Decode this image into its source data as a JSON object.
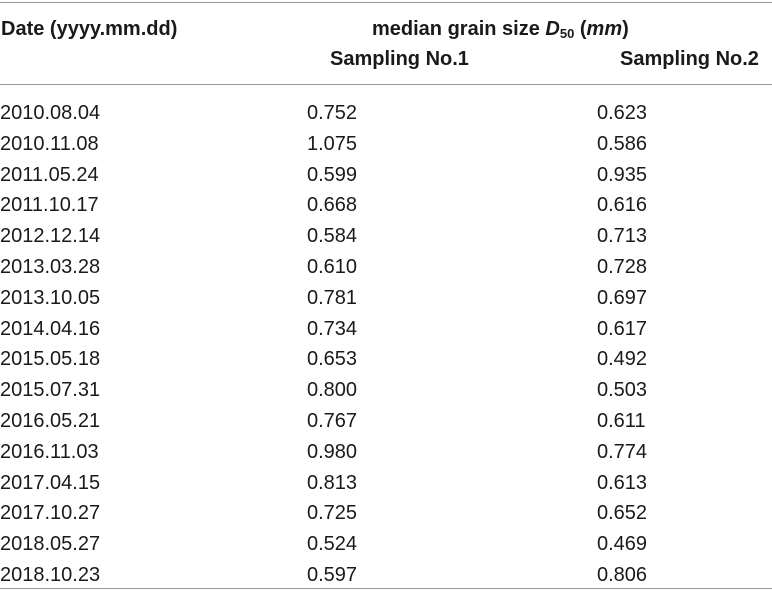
{
  "header": {
    "date_col": "Date (yyyy.mm.dd)",
    "group_label_prefix": "median grain size ",
    "group_symbol": "D",
    "group_subscript": "50",
    "group_unit_open": " (",
    "group_unit": "mm",
    "group_unit_close": ")",
    "sampling1": "Sampling No.1",
    "sampling2": "Sampling No.2"
  },
  "rows": [
    {
      "date": "2010.08.04",
      "s1": "0.752",
      "s2": "0.623"
    },
    {
      "date": "2010.11.08",
      "s1": "1.075",
      "s2": "0.586"
    },
    {
      "date": "2011.05.24",
      "s1": "0.599",
      "s2": "0.935"
    },
    {
      "date": "2011.10.17",
      "s1": "0.668",
      "s2": "0.616"
    },
    {
      "date": "2012.12.14",
      "s1": "0.584",
      "s2": "0.713"
    },
    {
      "date": "2013.03.28",
      "s1": "0.610",
      "s2": "0.728"
    },
    {
      "date": "2013.10.05",
      "s1": "0.781",
      "s2": "0.697"
    },
    {
      "date": "2014.04.16",
      "s1": "0.734",
      "s2": "0.617"
    },
    {
      "date": "2015.05.18",
      "s1": "0.653",
      "s2": "0.492"
    },
    {
      "date": "2015.07.31",
      "s1": "0.800",
      "s2": "0.503"
    },
    {
      "date": "2016.05.21",
      "s1": "0.767",
      "s2": "0.611"
    },
    {
      "date": "2016.11.03",
      "s1": "0.980",
      "s2": "0.774"
    },
    {
      "date": "2017.04.15",
      "s1": "0.813",
      "s2": "0.613"
    },
    {
      "date": "2017.10.27",
      "s1": "0.725",
      "s2": "0.652"
    },
    {
      "date": "2018.05.27",
      "s1": "0.524",
      "s2": "0.469"
    },
    {
      "date": "2018.10.23",
      "s1": "0.597",
      "s2": "0.806"
    }
  ]
}
